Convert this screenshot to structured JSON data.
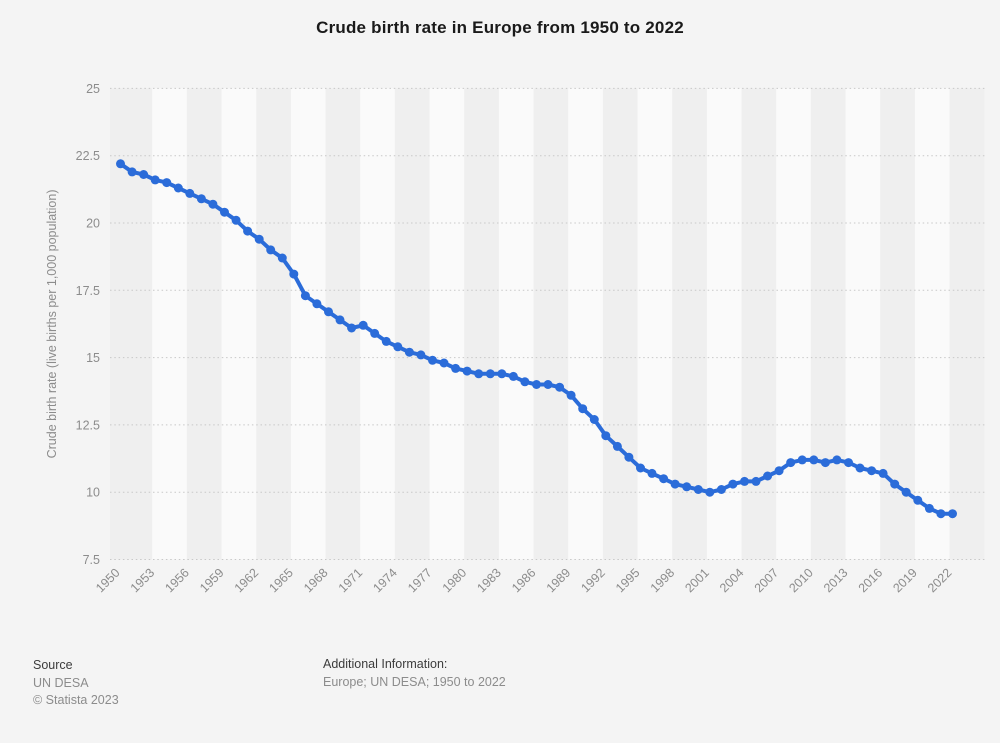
{
  "title": "Crude birth rate in Europe from 1950 to 2022",
  "chart_data": {
    "type": "line",
    "title": "Crude birth rate in Europe from 1950 to 2022",
    "xlabel": "",
    "ylabel": "Crude birth rate (live births per 1,000 population)",
    "ylim": [
      7.5,
      25
    ],
    "yticks": [
      25,
      22.5,
      20,
      17.5,
      15,
      12.5,
      10,
      7.5
    ],
    "xticks": [
      1950,
      1953,
      1956,
      1959,
      1962,
      1965,
      1968,
      1971,
      1974,
      1977,
      1980,
      1983,
      1986,
      1989,
      1992,
      1995,
      1998,
      2001,
      2004,
      2007,
      2010,
      2013,
      2016,
      2019,
      2022
    ],
    "grid": "horizontal-dotted",
    "plot_background": "alternating 3-year vertical bands",
    "legend": "none",
    "x": [
      1950,
      1951,
      1952,
      1953,
      1954,
      1955,
      1956,
      1957,
      1958,
      1959,
      1960,
      1961,
      1962,
      1963,
      1964,
      1965,
      1966,
      1967,
      1968,
      1969,
      1970,
      1971,
      1972,
      1973,
      1974,
      1975,
      1976,
      1977,
      1978,
      1979,
      1980,
      1981,
      1982,
      1983,
      1984,
      1985,
      1986,
      1987,
      1988,
      1989,
      1990,
      1991,
      1992,
      1993,
      1994,
      1995,
      1996,
      1997,
      1998,
      1999,
      2000,
      2001,
      2002,
      2003,
      2004,
      2005,
      2006,
      2007,
      2008,
      2009,
      2010,
      2011,
      2012,
      2013,
      2014,
      2015,
      2016,
      2017,
      2018,
      2019,
      2020,
      2021,
      2022
    ],
    "values": [
      22.2,
      21.9,
      21.8,
      21.6,
      21.5,
      21.3,
      21.1,
      20.9,
      20.7,
      20.4,
      20.1,
      19.7,
      19.4,
      19.0,
      18.7,
      18.1,
      17.3,
      17.0,
      16.7,
      16.4,
      16.1,
      16.2,
      15.9,
      15.6,
      15.4,
      15.2,
      15.1,
      14.9,
      14.8,
      14.6,
      14.5,
      14.4,
      14.4,
      14.4,
      14.3,
      14.1,
      14.0,
      14.0,
      13.9,
      13.6,
      13.1,
      12.7,
      12.1,
      11.7,
      11.3,
      10.9,
      10.7,
      10.5,
      10.3,
      10.2,
      10.1,
      10.0,
      10.1,
      10.3,
      10.4,
      10.4,
      10.6,
      10.8,
      11.1,
      11.2,
      11.2,
      11.1,
      11.2,
      11.1,
      10.9,
      10.8,
      10.7,
      10.3,
      10.0,
      9.7,
      9.4,
      9.2,
      9.2
    ],
    "series_name": "Crude birth rate"
  },
  "colors": {
    "page_background": "#f4f4f4",
    "band_dark": "#efefef",
    "band_light": "#fafafa",
    "gridline": "#c8c8c8",
    "series_blue": "#2b6cd9",
    "axis_text": "#8c8c8c",
    "title_text": "#1a1a1a",
    "footer_label_text": "#3c3c3c"
  },
  "footer": {
    "source_label": "Source",
    "source_value": "UN DESA",
    "copyright": "© Statista 2023",
    "additional_label": "Additional Information:",
    "additional_value": "Europe; UN DESA; 1950 to 2022"
  }
}
